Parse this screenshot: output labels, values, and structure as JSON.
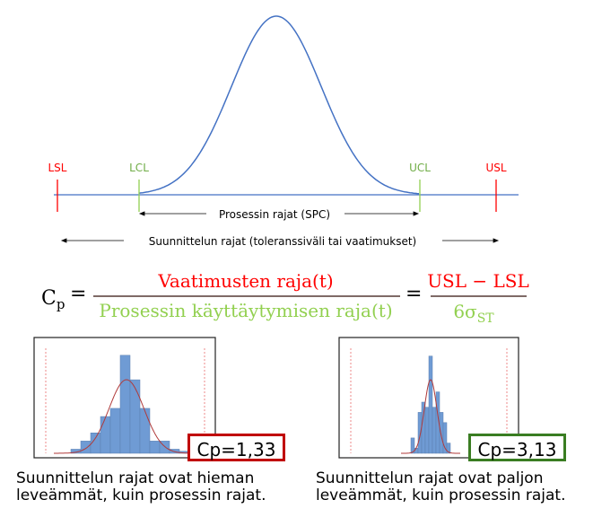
{
  "top_diagram": {
    "limits": {
      "lsl": "LSL",
      "lcl": "LCL",
      "ucl": "UCL",
      "usl": "USL"
    },
    "process_limits_label": "Prosessin rajat (SPC)",
    "design_limits_label": "Suunnittelun rajat (toleranssiväli tai vaatimukset)"
  },
  "formula": {
    "lhs": "C",
    "lhs_sub": "p",
    "numerator1": "Vaatimusten raja(t)",
    "denominator1": "Prosessin käyttäytymisen raja(t)",
    "numerator2": "USL − LSL",
    "denominator2": "6σ",
    "denominator2_sub": "ST"
  },
  "examples": [
    {
      "cp_label": "Cp=1,33",
      "border_color": "#c00000",
      "caption_line1": "Suunnittelun rajat ovat hieman",
      "caption_line2": "leveämmät, kuin prosessin rajat.",
      "bars": [
        1,
        3,
        5,
        9,
        11,
        24,
        18,
        11,
        3,
        3,
        1,
        0.5
      ]
    },
    {
      "cp_label": "Cp=3,13",
      "border_color": "#3a7d22",
      "caption_line1": "Suunnittelun rajat ovat paljon",
      "caption_line2": "leveämmät, kuin prosessin rajat.",
      "bars": [
        3,
        1,
        8,
        10,
        9,
        19,
        9,
        12,
        8,
        6,
        2
      ]
    }
  ],
  "colors": {
    "red": "#ff0000",
    "green": "#92d050",
    "axis": "#4472c4",
    "bar": "#6f9bd4",
    "curve": "#b03a3a"
  }
}
